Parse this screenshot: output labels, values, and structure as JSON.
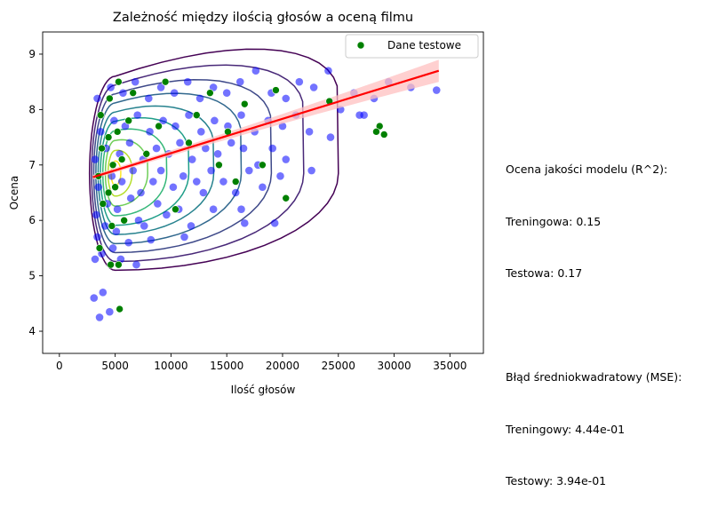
{
  "chart_data": {
    "type": "scatter",
    "title": "Zależność między ilością głosów a oceną filmu",
    "xlabel": "Ilość głosów",
    "ylabel": "Ocena",
    "xlim": [
      -1500,
      38000
    ],
    "ylim": [
      3.6,
      9.4
    ],
    "xticks": [
      0,
      5000,
      10000,
      15000,
      20000,
      25000,
      30000,
      35000
    ],
    "yticks": [
      4,
      5,
      6,
      7,
      8,
      9
    ],
    "grid": false,
    "legend": {
      "placement": "top-right",
      "entries": [
        "Dane testowe"
      ]
    },
    "colors": {
      "train": "#0000ff",
      "test": "#008000",
      "regression": "#ff0000",
      "confidence_band": "#ffc0c0",
      "kde_levels": [
        "#440154",
        "#482878",
        "#3e4989",
        "#31688e",
        "#26828e",
        "#1f9e89",
        "#35b779",
        "#6ece58",
        "#b5de2b",
        "#fde725"
      ]
    },
    "regression_line": {
      "x": [
        3000,
        34000
      ],
      "y": [
        6.78,
        8.7
      ]
    },
    "series": [
      {
        "role": "train",
        "points": [
          [
            3100,
            4.6
          ],
          [
            3600,
            4.25
          ],
          [
            3900,
            4.7
          ],
          [
            4500,
            4.35
          ],
          [
            3200,
            5.3
          ],
          [
            3800,
            5.4
          ],
          [
            4800,
            5.5
          ],
          [
            5500,
            5.3
          ],
          [
            6200,
            5.6
          ],
          [
            6900,
            5.2
          ],
          [
            3400,
            5.7
          ],
          [
            4100,
            5.9
          ],
          [
            5100,
            5.8
          ],
          [
            7600,
            5.9
          ],
          [
            8200,
            5.65
          ],
          [
            3300,
            6.1
          ],
          [
            4300,
            6.3
          ],
          [
            5200,
            6.2
          ],
          [
            6400,
            6.4
          ],
          [
            7100,
            6.0
          ],
          [
            8800,
            6.3
          ],
          [
            9600,
            6.1
          ],
          [
            10700,
            6.2
          ],
          [
            11800,
            5.9
          ],
          [
            12900,
            6.5
          ],
          [
            13800,
            6.2
          ],
          [
            11200,
            5.7
          ],
          [
            3500,
            6.6
          ],
          [
            4700,
            6.8
          ],
          [
            5600,
            6.7
          ],
          [
            6600,
            6.9
          ],
          [
            7300,
            6.5
          ],
          [
            8400,
            6.7
          ],
          [
            9100,
            6.9
          ],
          [
            10200,
            6.6
          ],
          [
            11100,
            6.8
          ],
          [
            12300,
            6.7
          ],
          [
            13600,
            6.9
          ],
          [
            14700,
            6.7
          ],
          [
            15800,
            6.5
          ],
          [
            17000,
            6.9
          ],
          [
            18200,
            6.6
          ],
          [
            16300,
            6.2
          ],
          [
            3200,
            7.1
          ],
          [
            4200,
            7.3
          ],
          [
            5400,
            7.2
          ],
          [
            6300,
            7.4
          ],
          [
            7500,
            7.1
          ],
          [
            8700,
            7.3
          ],
          [
            9800,
            7.2
          ],
          [
            10800,
            7.4
          ],
          [
            11900,
            7.1
          ],
          [
            13100,
            7.3
          ],
          [
            14200,
            7.2
          ],
          [
            15400,
            7.4
          ],
          [
            16500,
            7.3
          ],
          [
            17800,
            7.0
          ],
          [
            19100,
            7.3
          ],
          [
            20300,
            7.1
          ],
          [
            19800,
            6.8
          ],
          [
            3700,
            7.6
          ],
          [
            4900,
            7.8
          ],
          [
            5900,
            7.7
          ],
          [
            7000,
            7.9
          ],
          [
            8100,
            7.6
          ],
          [
            9300,
            7.8
          ],
          [
            10400,
            7.7
          ],
          [
            11600,
            7.9
          ],
          [
            12700,
            7.6
          ],
          [
            13900,
            7.8
          ],
          [
            15100,
            7.7
          ],
          [
            16300,
            7.9
          ],
          [
            17500,
            7.6
          ],
          [
            18700,
            7.8
          ],
          [
            20000,
            7.7
          ],
          [
            21200,
            7.9
          ],
          [
            22400,
            7.6
          ],
          [
            3400,
            8.2
          ],
          [
            4600,
            8.4
          ],
          [
            5700,
            8.3
          ],
          [
            6800,
            8.5
          ],
          [
            8000,
            8.2
          ],
          [
            9100,
            8.4
          ],
          [
            10300,
            8.3
          ],
          [
            11500,
            8.5
          ],
          [
            12600,
            8.2
          ],
          [
            13800,
            8.4
          ],
          [
            15000,
            8.3
          ],
          [
            16200,
            8.5
          ],
          [
            17600,
            8.7
          ],
          [
            19000,
            8.3
          ],
          [
            20300,
            8.2
          ],
          [
            21500,
            8.5
          ],
          [
            22800,
            8.4
          ],
          [
            24100,
            8.7
          ],
          [
            25200,
            8.0
          ],
          [
            26400,
            8.3
          ],
          [
            27300,
            7.9
          ],
          [
            28200,
            8.2
          ],
          [
            29500,
            8.5
          ],
          [
            31500,
            8.4
          ],
          [
            33800,
            8.35
          ],
          [
            24300,
            7.5
          ],
          [
            26900,
            7.9
          ],
          [
            19300,
            5.95
          ],
          [
            16600,
            5.95
          ],
          [
            22600,
            6.9
          ]
        ]
      },
      {
        "role": "test",
        "name": "Dane testowe",
        "points": [
          [
            5400,
            4.4
          ],
          [
            4600,
            5.2
          ],
          [
            5300,
            5.2
          ],
          [
            3600,
            5.5
          ],
          [
            4700,
            5.9
          ],
          [
            5800,
            6.0
          ],
          [
            3900,
            6.3
          ],
          [
            4400,
            6.5
          ],
          [
            5000,
            6.6
          ],
          [
            3500,
            6.8
          ],
          [
            4800,
            7.0
          ],
          [
            5600,
            7.1
          ],
          [
            3800,
            7.3
          ],
          [
            4400,
            7.5
          ],
          [
            5200,
            7.6
          ],
          [
            6200,
            7.8
          ],
          [
            3700,
            7.9
          ],
          [
            4500,
            8.2
          ],
          [
            5300,
            8.5
          ],
          [
            6600,
            8.3
          ],
          [
            7800,
            7.2
          ],
          [
            8900,
            7.7
          ],
          [
            9500,
            8.5
          ],
          [
            10400,
            6.2
          ],
          [
            11600,
            7.4
          ],
          [
            12300,
            7.9
          ],
          [
            13500,
            8.3
          ],
          [
            14300,
            7.0
          ],
          [
            15100,
            7.6
          ],
          [
            15800,
            6.7
          ],
          [
            16600,
            8.1
          ],
          [
            18200,
            7.0
          ],
          [
            19400,
            8.35
          ],
          [
            20300,
            6.4
          ],
          [
            24200,
            8.15
          ],
          [
            28700,
            7.7
          ],
          [
            29100,
            7.55
          ],
          [
            28400,
            7.6
          ]
        ]
      }
    ]
  },
  "metrics": {
    "r2_header": "Ocena jakości modelu (R^2):",
    "r2_train": "Treningowa: 0.15",
    "r2_test": "Testowa: 0.17",
    "mse_header": "Błąd średniokwadratowy (MSE):",
    "mse_train": "Treningowy: 4.44e-01",
    "mse_test": "Testowy: 3.94e-01"
  }
}
